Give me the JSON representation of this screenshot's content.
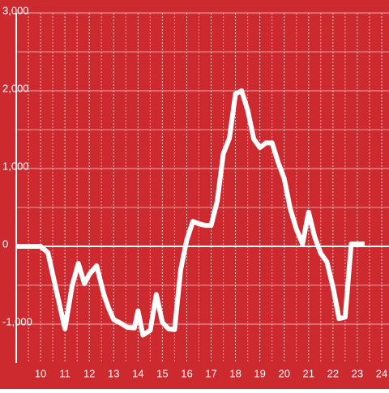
{
  "chart_data": {
    "type": "line",
    "x": [
      9.0,
      10.0,
      10.3,
      10.6,
      11.0,
      11.3,
      11.55,
      11.8,
      12.0,
      12.3,
      12.6,
      12.8,
      13.0,
      13.3,
      13.55,
      13.85,
      14.0,
      14.2,
      14.5,
      14.75,
      15.0,
      15.25,
      15.5,
      15.75,
      16.0,
      16.25,
      16.5,
      16.75,
      17.0,
      17.25,
      17.5,
      17.75,
      18.0,
      18.25,
      18.5,
      18.75,
      19.0,
      19.25,
      19.5,
      19.75,
      20.0,
      20.25,
      20.5,
      20.75,
      21.0,
      21.25,
      21.5,
      21.75,
      22.0,
      22.25,
      22.5,
      22.75,
      23.0,
      23.3
    ],
    "series": [
      {
        "color": "#ffffff",
        "values": [
          0,
          0,
          -80,
          -500,
          -1060,
          -500,
          -220,
          -480,
          -360,
          -250,
          -620,
          -800,
          -940,
          -990,
          -1040,
          -1050,
          -830,
          -1140,
          -1080,
          -620,
          -980,
          -1060,
          -1070,
          -300,
          80,
          320,
          290,
          270,
          270,
          580,
          1190,
          1390,
          1960,
          2000,
          1750,
          1380,
          1270,
          1330,
          1330,
          1080,
          870,
          480,
          220,
          30,
          440,
          120,
          -90,
          -200,
          -520,
          -930,
          -910,
          30,
          30,
          30
        ]
      }
    ],
    "xlim": [
      9,
      24.3
    ],
    "xticks": [
      10,
      11,
      12,
      13,
      14,
      15,
      16,
      17,
      18,
      19,
      20,
      21,
      22,
      23,
      24
    ],
    "xminorticks": [
      9.5,
      10.5,
      11.5,
      12.5,
      13.5,
      14.5,
      15.5,
      16.5,
      17.5,
      18.5,
      19.5,
      20.5,
      21.5,
      22.5,
      23.5
    ],
    "ylim": [
      -1500,
      3000
    ],
    "yticks": [
      {
        "value": -1000,
        "label": "-1,000"
      },
      0,
      {
        "value": 1000,
        "label": "1,000"
      },
      {
        "value": 2000,
        "label": "2,000"
      },
      {
        "value": 3000,
        "label": "3,000"
      }
    ],
    "yminorticks": [
      -500,
      500,
      1500,
      2500
    ],
    "grid": true,
    "background": "#cd2a30"
  }
}
